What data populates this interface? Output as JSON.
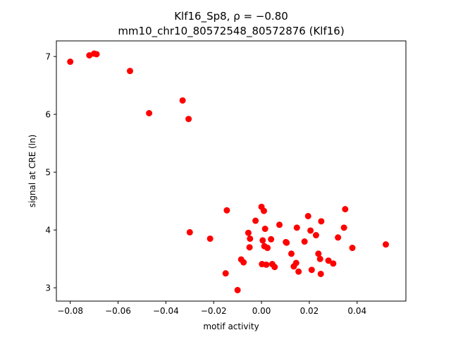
{
  "chart_data": {
    "type": "scatter",
    "title_line1": "Klf16_Sp8, ρ = −0.80",
    "title_line2": "mm10_chr10_80572548_80572876 (Klf16)",
    "xlabel": "motif activity",
    "ylabel": "signal at CRE (ln)",
    "xlim": [
      -0.0858,
      0.0604
    ],
    "ylim": [
      2.77,
      7.27
    ],
    "xticks": [
      -0.08,
      -0.06,
      -0.04,
      -0.02,
      0.0,
      0.02,
      0.04
    ],
    "xtick_labels": [
      "−0.08",
      "−0.06",
      "−0.04",
      "−0.02",
      "0.00",
      "0.02",
      "0.04"
    ],
    "yticks": [
      3,
      4,
      5,
      6,
      7
    ],
    "ytick_labels": [
      "3",
      "4",
      "5",
      "6",
      "7"
    ],
    "grid": false,
    "marker_color": "#ff0000",
    "series": [
      {
        "x": [
          -0.08,
          -0.072,
          -0.07,
          -0.069,
          -0.055,
          -0.047,
          -0.033,
          -0.0305,
          -0.03,
          -0.0215,
          -0.015,
          -0.0145,
          -0.01,
          -0.0085,
          -0.0075,
          -0.0055,
          -0.005,
          -0.0048,
          -0.0025,
          0.0,
          0.0002,
          0.0005,
          0.001,
          0.0012,
          0.0015,
          0.002,
          0.0025,
          0.004,
          0.0045,
          0.0055,
          0.0075,
          0.0102,
          0.0105,
          0.0125,
          0.0135,
          0.0145,
          0.0148,
          0.0155,
          0.018,
          0.0195,
          0.0205,
          0.021,
          0.0228,
          0.0238,
          0.0245,
          0.0248,
          0.025,
          0.028,
          0.03,
          0.032,
          0.0345,
          0.035,
          0.038,
          0.052
        ],
        "y": [
          6.91,
          7.02,
          7.05,
          7.04,
          6.75,
          6.02,
          6.24,
          5.92,
          3.96,
          3.85,
          3.25,
          4.34,
          2.96,
          3.49,
          3.44,
          3.95,
          3.7,
          3.85,
          4.16,
          4.4,
          3.41,
          3.82,
          4.33,
          3.72,
          4.02,
          3.4,
          3.69,
          3.84,
          3.41,
          3.36,
          4.09,
          3.79,
          3.78,
          3.59,
          3.37,
          3.43,
          4.04,
          3.28,
          3.8,
          4.24,
          3.99,
          3.31,
          3.91,
          3.59,
          3.5,
          3.24,
          4.15,
          3.47,
          3.42,
          3.87,
          4.04,
          4.36,
          3.69,
          3.75
        ]
      }
    ]
  }
}
